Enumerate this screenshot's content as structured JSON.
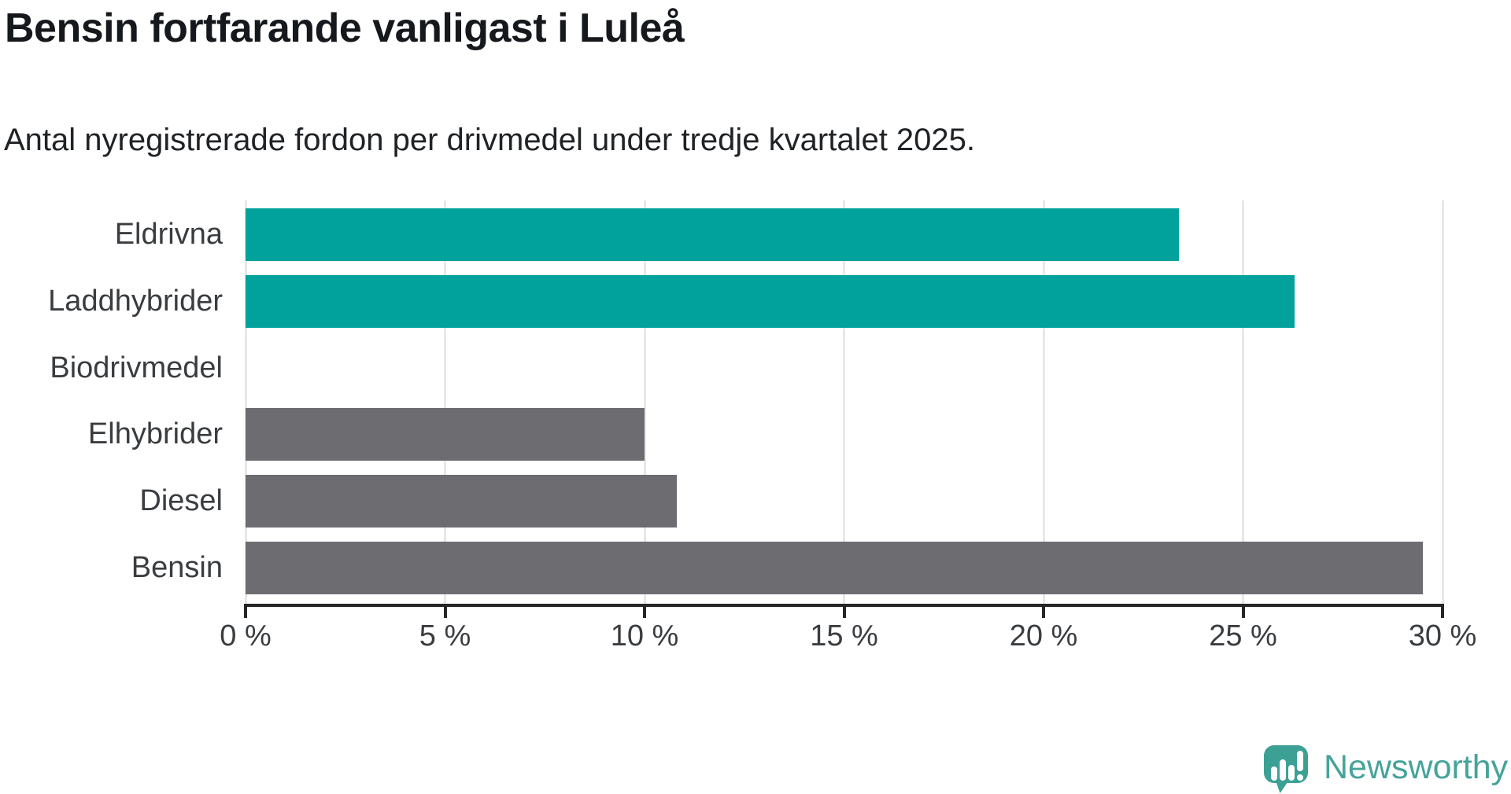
{
  "branding": {
    "logo_text": "Newsworthy",
    "logo_text_color": "#46a39a",
    "logo_icon_color": "#3ca095",
    "logo_icon": "speech-bubble-with-bar-chart-and-exclamation"
  },
  "colors": {
    "highlight_bar": "#00a29b",
    "default_bar": "#6c6c71",
    "gridline": "#e8e8e8",
    "axis": "#262626",
    "title_text": "#15181c",
    "label_text": "#3a3d40"
  },
  "chart_data": {
    "type": "bar",
    "orientation": "horizontal",
    "title": "Bensin fortfarande vanligast i Luleå",
    "subtitle": "Antal nyregistrerade fordon per drivmedel under tredje kvartalet 2025.",
    "categories": [
      "Eldrivna",
      "Laddhybrider",
      "Biodrivmedel",
      "Elhybrider",
      "Diesel",
      "Bensin"
    ],
    "values": [
      23.4,
      26.3,
      0,
      10.0,
      10.8,
      29.5
    ],
    "bar_colors": [
      "#00a29b",
      "#00a29b",
      "#6c6c71",
      "#6c6c71",
      "#6c6c71",
      "#6c6c71"
    ],
    "xlabel": "",
    "ylabel": "",
    "xlim": [
      0,
      30
    ],
    "xticks": [
      0,
      5,
      10,
      15,
      20,
      25,
      30
    ],
    "xtick_labels": [
      "0 %",
      "5 %",
      "10 %",
      "15 %",
      "20 %",
      "25 %",
      "30 %"
    ],
    "grid": "vertical-gridlines-on",
    "legend": "none",
    "unit": "%"
  }
}
